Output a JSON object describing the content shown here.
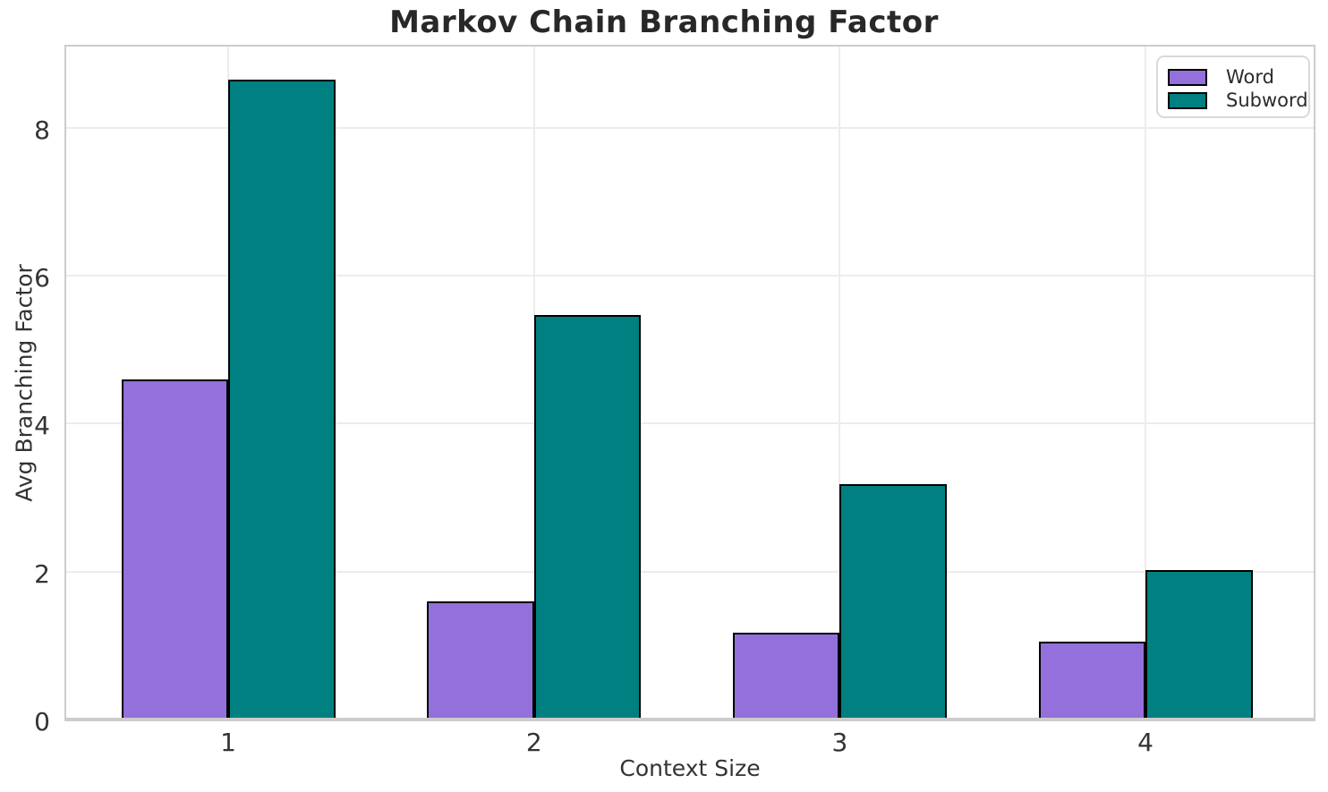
{
  "chart_data": {
    "type": "bar",
    "title": "Markov Chain Branching Factor",
    "xlabel": "Context Size",
    "ylabel": "Avg Branching Factor",
    "categories": [
      "1",
      "2",
      "3",
      "4"
    ],
    "series": [
      {
        "name": "Word",
        "color": "#9370DB",
        "values": [
          4.6,
          1.6,
          1.17,
          1.05
        ]
      },
      {
        "name": "Subword",
        "color": "#008080",
        "values": [
          8.65,
          5.47,
          3.18,
          2.02
        ]
      }
    ],
    "yticks": [
      0,
      2,
      4,
      6,
      8
    ],
    "ylim": [
      0,
      9.1
    ],
    "xlim": [
      -0.53,
      3.55
    ],
    "bar_width_units": 0.35,
    "bar_edge_color": "#000000",
    "grid": true,
    "grid_color": "#ececec",
    "spine_color": "#cccccc",
    "background_color": "#ffffff",
    "legend": {
      "position": "upper right",
      "labels": [
        "Word",
        "Subword"
      ]
    }
  }
}
